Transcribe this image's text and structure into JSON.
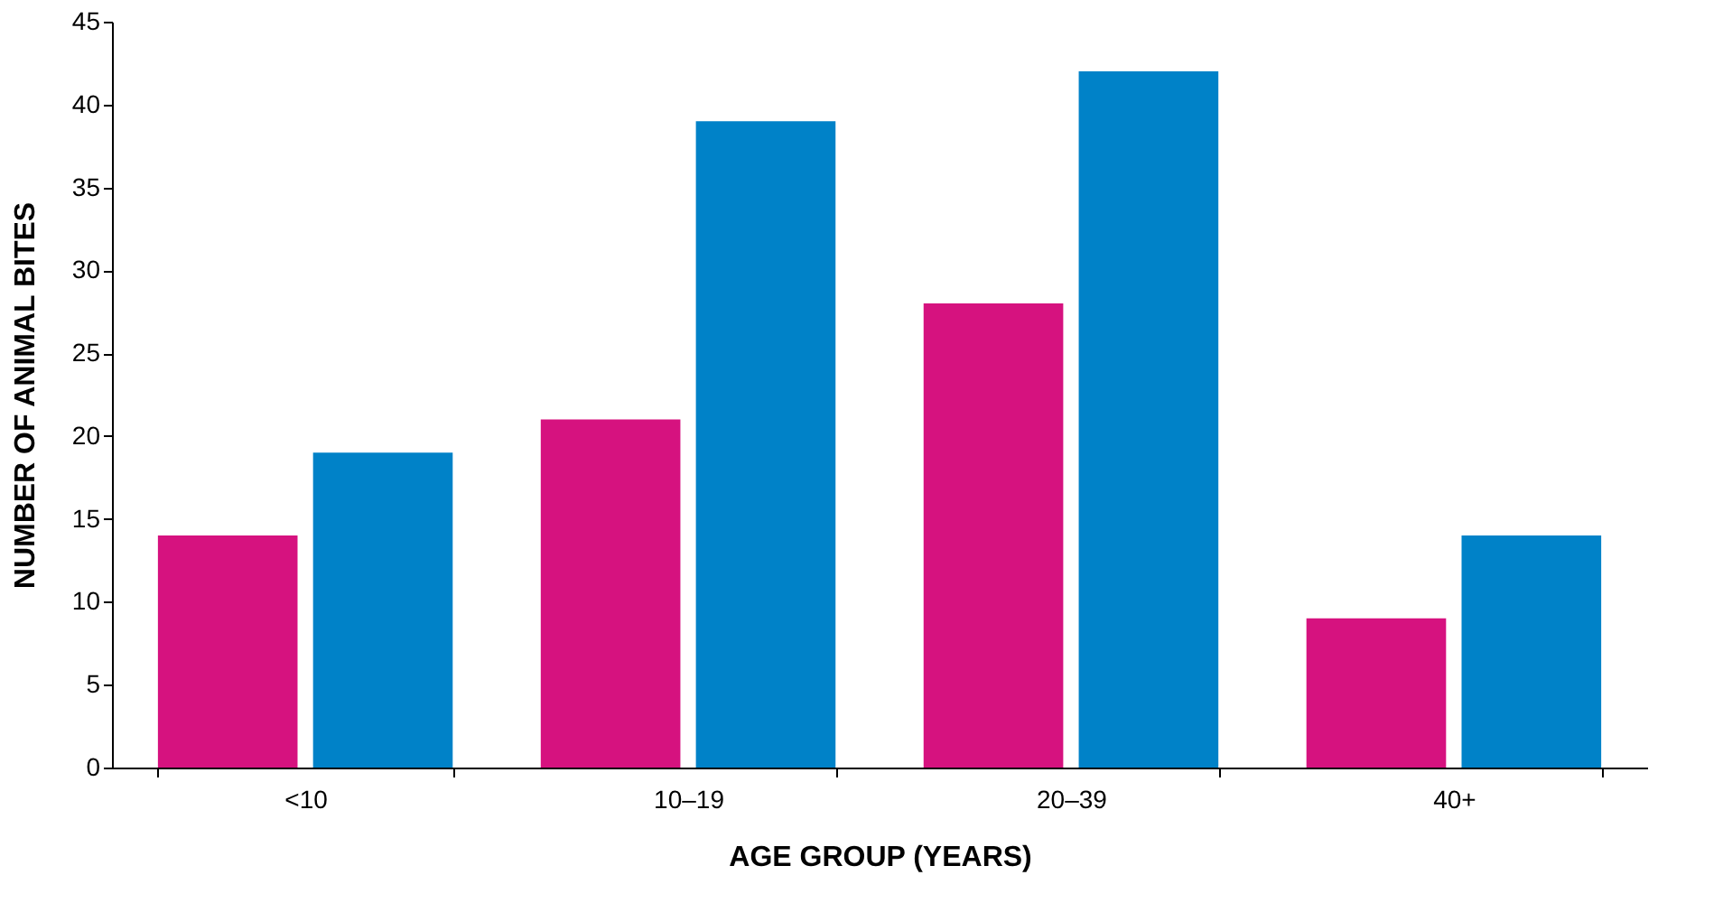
{
  "chart_data": {
    "type": "bar",
    "xlabel": "AGE GROUP (YEARS)",
    "ylabel": "NUMBER OF ANIMAL BITES",
    "categories": [
      "<10",
      "10–19",
      "20–39",
      "40+"
    ],
    "series": [
      {
        "color": "#d6127f",
        "values": [
          14,
          21,
          28,
          9
        ]
      },
      {
        "color": "#0082c8",
        "values": [
          19,
          39,
          42,
          14
        ]
      }
    ],
    "ylim": [
      0,
      45
    ],
    "yticks": [
      0,
      5,
      10,
      15,
      20,
      25,
      30,
      35,
      40,
      45
    ]
  }
}
